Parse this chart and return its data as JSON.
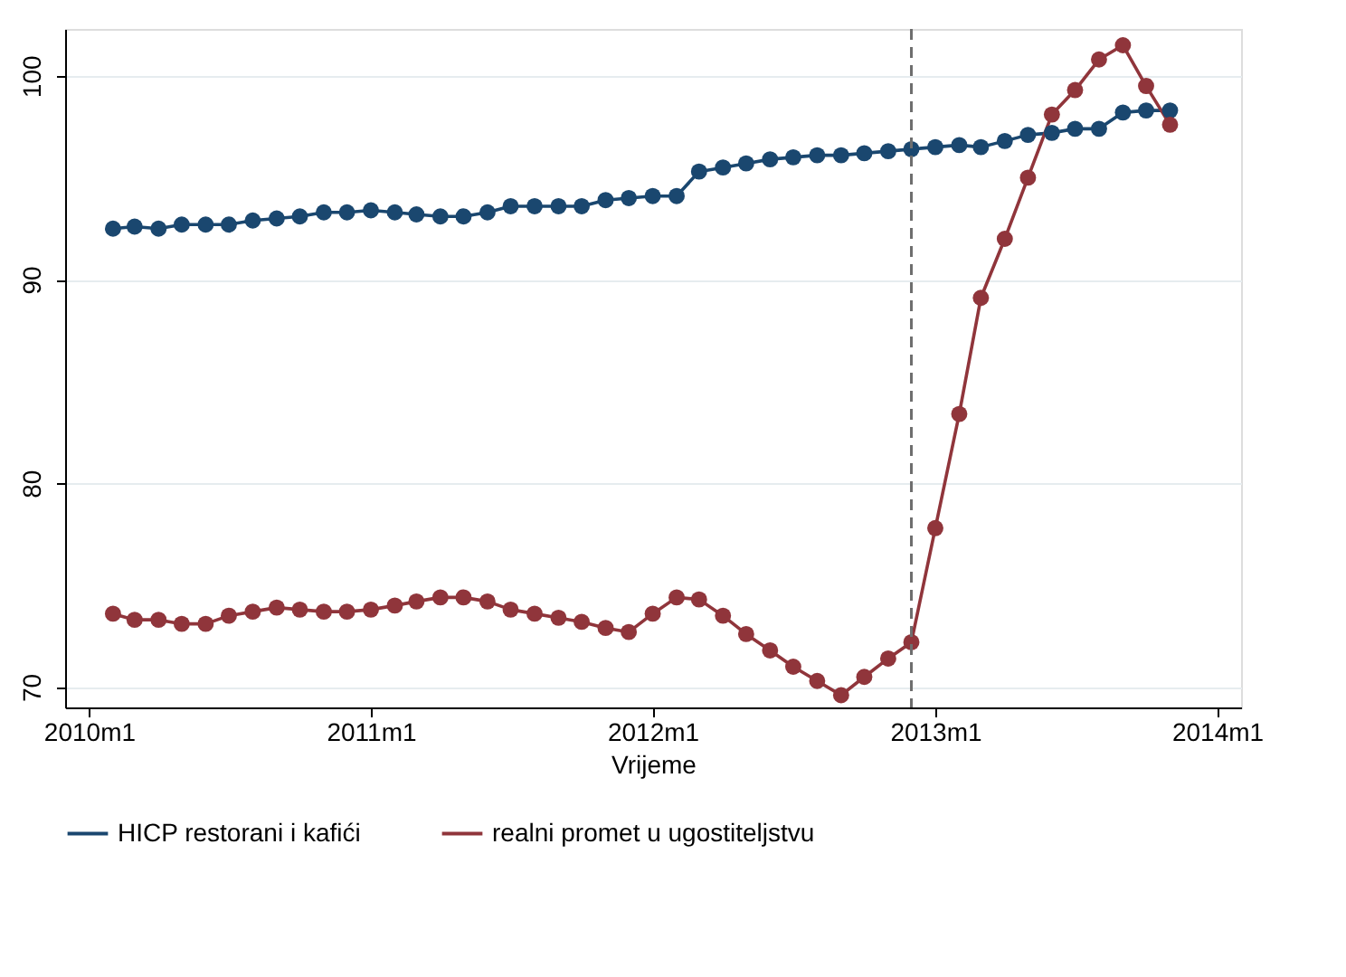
{
  "chart_data": {
    "type": "line",
    "xlabel": "Vrijeme",
    "x": [
      "2010-02",
      "2010-03",
      "2010-04",
      "2010-05",
      "2010-06",
      "2010-07",
      "2010-08",
      "2010-09",
      "2010-10",
      "2010-11",
      "2010-12",
      "2011-01",
      "2011-02",
      "2011-03",
      "2011-04",
      "2011-05",
      "2011-06",
      "2011-07",
      "2011-08",
      "2011-09",
      "2011-10",
      "2011-11",
      "2011-12",
      "2012-01",
      "2012-02",
      "2012-03",
      "2012-04",
      "2012-05",
      "2012-06",
      "2012-07",
      "2012-08",
      "2012-09",
      "2012-10",
      "2012-11",
      "2012-12",
      "2013-01",
      "2013-02",
      "2013-03",
      "2013-04",
      "2013-05",
      "2013-06",
      "2013-07",
      "2013-08",
      "2013-09",
      "2013-10",
      "2013-11"
    ],
    "series": [
      {
        "name": "HICP restorani i kafići",
        "color": "#1a476f",
        "values": [
          92.5,
          92.6,
          92.5,
          92.7,
          92.7,
          92.7,
          92.9,
          93.0,
          93.1,
          93.3,
          93.3,
          93.4,
          93.3,
          93.2,
          93.1,
          93.1,
          93.3,
          93.6,
          93.6,
          93.6,
          93.6,
          93.9,
          94.0,
          94.1,
          94.1,
          95.3,
          95.5,
          95.7,
          95.9,
          96.0,
          96.1,
          96.1,
          96.2,
          96.3,
          96.4,
          96.5,
          96.6,
          96.5,
          96.8,
          97.1,
          97.2,
          97.4,
          97.4,
          98.2,
          98.3,
          98.3
        ]
      },
      {
        "name": "realni promet u ugostiteljstvu",
        "color": "#90353b",
        "values": [
          73.6,
          73.3,
          73.3,
          73.1,
          73.1,
          73.5,
          73.7,
          73.9,
          73.8,
          73.7,
          73.7,
          73.8,
          74.0,
          74.2,
          74.4,
          74.4,
          74.2,
          73.8,
          73.6,
          73.4,
          73.2,
          72.9,
          72.7,
          73.6,
          74.4,
          74.3,
          73.5,
          72.6,
          71.8,
          71.0,
          70.3,
          69.6,
          70.5,
          71.4,
          72.2,
          77.8,
          83.4,
          89.1,
          92.0,
          95.0,
          98.1,
          99.3,
          100.8,
          101.5,
          99.5,
          97.6
        ]
      }
    ],
    "xlim": [
      "2009-12",
      "2014-02"
    ],
    "xticks": [
      {
        "value": "2010-01",
        "label": "2010m1"
      },
      {
        "value": "2011-01",
        "label": "2011m1"
      },
      {
        "value": "2012-01",
        "label": "2012m1"
      },
      {
        "value": "2013-01",
        "label": "2013m1"
      },
      {
        "value": "2014-01",
        "label": "2014m1"
      }
    ],
    "ylim": [
      69,
      102.3
    ],
    "yticks": [
      70,
      80,
      90,
      100
    ],
    "ref_lines": [
      {
        "axis": "x",
        "value": "2012-12",
        "color": "#6e6e6e",
        "line_style": "dashed"
      }
    ],
    "grid": "y",
    "legend": "bottom",
    "marker": "circle",
    "line_style": "solid"
  }
}
